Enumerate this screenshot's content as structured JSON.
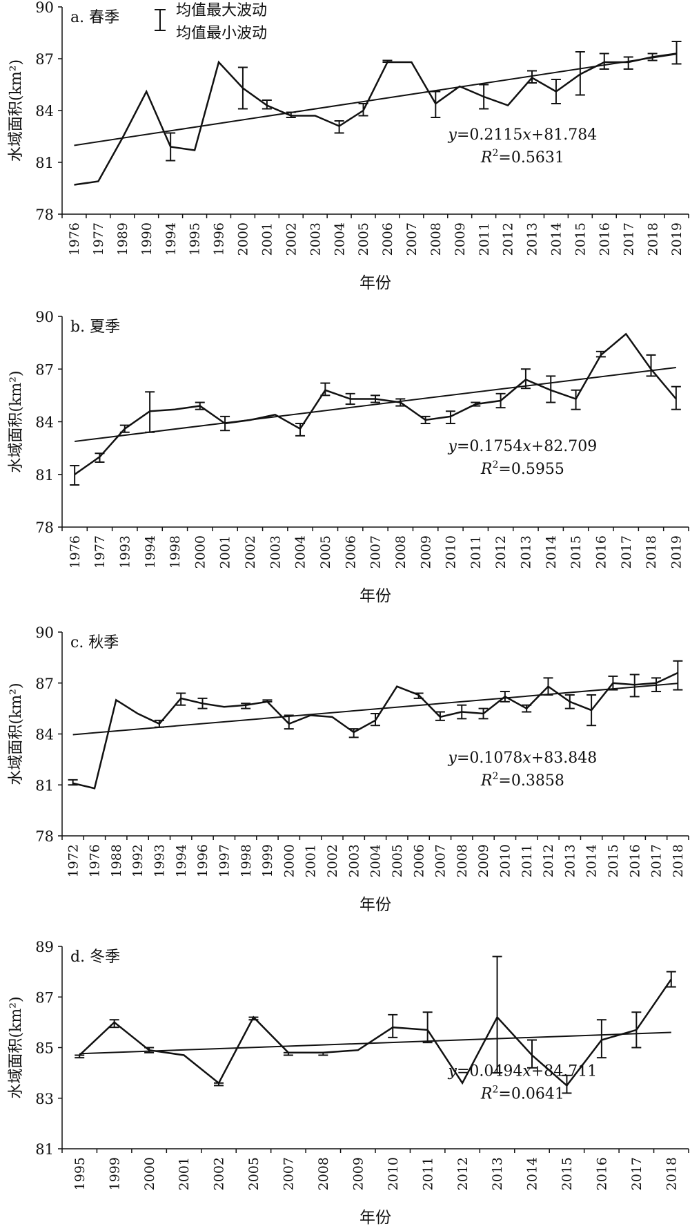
{
  "legend": {
    "max_label": "均值最大波动",
    "min_label": "均值最小波动"
  },
  "chart_data": [
    {
      "type": "line",
      "title": "a. 春季",
      "xlabel": "年份",
      "ylabel": "水域面积(km²)",
      "ylim": [
        78,
        90
      ],
      "yticks": [
        78,
        81,
        84,
        87,
        90
      ],
      "categories": [
        "1976",
        "1977",
        "1989",
        "1990",
        "1994",
        "1995",
        "1996",
        "2000",
        "2001",
        "2002",
        "2003",
        "2004",
        "2005",
        "2006",
        "2007",
        "2008",
        "2009",
        "2011",
        "2012",
        "2013",
        "2014",
        "2015",
        "2016",
        "2017",
        "2018",
        "2019"
      ],
      "series": [
        {
          "values": [
            79.7,
            79.9,
            82.4,
            85.1,
            81.9,
            81.7,
            86.8,
            85.3,
            84.3,
            83.7,
            83.7,
            83.1,
            84.0,
            86.8,
            86.8,
            84.4,
            85.4,
            84.8,
            84.3,
            85.9,
            85.1,
            86.1,
            86.8,
            86.8,
            87.1,
            87.3
          ]
        }
      ],
      "error_bars": [
        {
          "category": "1994",
          "high": 82.7,
          "low": 81.1
        },
        {
          "category": "2000",
          "high": 86.5,
          "low": 84.1
        },
        {
          "category": "2001",
          "high": 84.6,
          "low": 84.1
        },
        {
          "category": "2002",
          "high": 83.9,
          "low": 83.6
        },
        {
          "category": "2004",
          "high": 83.4,
          "low": 82.7
        },
        {
          "category": "2005",
          "high": 84.4,
          "low": 83.7
        },
        {
          "category": "2006",
          "high": 86.9,
          "low": 86.8
        },
        {
          "category": "2008",
          "high": 85.1,
          "low": 83.6
        },
        {
          "category": "2011",
          "high": 85.5,
          "low": 84.1
        },
        {
          "category": "2013",
          "high": 86.3,
          "low": 85.6
        },
        {
          "category": "2014",
          "high": 85.8,
          "low": 84.4
        },
        {
          "category": "2015",
          "high": 87.4,
          "low": 84.9
        },
        {
          "category": "2016",
          "high": 87.3,
          "low": 86.4
        },
        {
          "category": "2017",
          "high": 87.1,
          "low": 86.4
        },
        {
          "category": "2018",
          "high": 87.3,
          "low": 86.9
        },
        {
          "category": "2019",
          "high": 88.0,
          "low": 86.7
        }
      ],
      "trend": {
        "start": 81.98,
        "end": 87.27
      },
      "equation": {
        "prefix": "y",
        "mid": "=0.2115",
        "var": "x",
        "rest": "+81.784"
      },
      "r2": {
        "prefix": "R",
        "sup": "2",
        "rest": "=0.5631"
      }
    },
    {
      "type": "line",
      "title": "b. 夏季",
      "xlabel": "年份",
      "ylabel": "水域面积(km²)",
      "ylim": [
        78,
        90
      ],
      "yticks": [
        78,
        81,
        84,
        87,
        90
      ],
      "categories": [
        "1976",
        "1977",
        "1993",
        "1994",
        "1998",
        "2000",
        "2001",
        "2002",
        "2003",
        "2004",
        "2005",
        "2006",
        "2007",
        "2008",
        "2009",
        "2010",
        "2011",
        "2012",
        "2013",
        "2014",
        "2015",
        "2016",
        "2017",
        "2018",
        "2019"
      ],
      "series": [
        {
          "values": [
            81.0,
            82.0,
            83.6,
            84.6,
            84.7,
            84.9,
            83.9,
            84.1,
            84.4,
            83.6,
            85.8,
            85.3,
            85.3,
            85.1,
            84.1,
            84.3,
            85.0,
            85.2,
            86.4,
            85.8,
            85.3,
            87.8,
            89.0,
            87.0,
            85.3
          ]
        }
      ],
      "error_bars": [
        {
          "category": "1976",
          "high": 81.5,
          "low": 80.4
        },
        {
          "category": "1977",
          "high": 82.2,
          "low": 81.7
        },
        {
          "category": "1993",
          "high": 83.8,
          "low": 83.4
        },
        {
          "category": "1994",
          "high": 85.7,
          "low": 83.4
        },
        {
          "category": "2000",
          "high": 85.1,
          "low": 84.7
        },
        {
          "category": "2001",
          "high": 84.3,
          "low": 83.5
        },
        {
          "category": "2004",
          "high": 83.9,
          "low": 83.2
        },
        {
          "category": "2005",
          "high": 86.2,
          "low": 85.5
        },
        {
          "category": "2006",
          "high": 85.6,
          "low": 85.0
        },
        {
          "category": "2007",
          "high": 85.5,
          "low": 85.1
        },
        {
          "category": "2008",
          "high": 85.3,
          "low": 84.9
        },
        {
          "category": "2009",
          "high": 84.3,
          "low": 83.9
        },
        {
          "category": "2010",
          "high": 84.6,
          "low": 83.9
        },
        {
          "category": "2011",
          "high": 85.1,
          "low": 84.9
        },
        {
          "category": "2012",
          "high": 85.6,
          "low": 84.8
        },
        {
          "category": "2013",
          "high": 87.0,
          "low": 85.9
        },
        {
          "category": "2014",
          "high": 86.6,
          "low": 85.1
        },
        {
          "category": "2015",
          "high": 85.8,
          "low": 84.7
        },
        {
          "category": "2016",
          "high": 88.0,
          "low": 87.7
        },
        {
          "category": "2018",
          "high": 87.8,
          "low": 86.6
        },
        {
          "category": "2019",
          "high": 86.0,
          "low": 84.7
        }
      ],
      "trend": {
        "start": 82.88,
        "end": 87.09
      },
      "equation": {
        "prefix": "y",
        "mid": "=0.1754",
        "var": "x",
        "rest": "+82.709"
      },
      "r2": {
        "prefix": "R",
        "sup": "2",
        "rest": "=0.5955"
      }
    },
    {
      "type": "line",
      "title": "c. 秋季",
      "xlabel": "年份",
      "ylabel": "水域面积(km²)",
      "ylim": [
        78,
        90
      ],
      "yticks": [
        78,
        81,
        84,
        87,
        90
      ],
      "categories": [
        "1972",
        "1976",
        "1988",
        "1992",
        "1993",
        "1994",
        "1996",
        "1997",
        "1998",
        "1999",
        "2000",
        "2001",
        "2002",
        "2003",
        "2004",
        "2005",
        "2006",
        "2007",
        "2008",
        "2009",
        "2010",
        "2011",
        "2012",
        "2013",
        "2014",
        "2015",
        "2016",
        "2017",
        "2018"
      ],
      "series": [
        {
          "values": [
            81.1,
            80.8,
            86.0,
            85.2,
            84.6,
            86.1,
            85.8,
            85.6,
            85.7,
            85.9,
            84.6,
            85.1,
            85.0,
            84.1,
            84.8,
            86.8,
            86.3,
            85.0,
            85.3,
            85.2,
            86.2,
            85.5,
            86.8,
            85.9,
            85.4,
            87.0,
            86.9,
            87.0,
            87.6
          ]
        }
      ],
      "error_bars": [
        {
          "category": "1972",
          "high": 81.3,
          "low": 81.0
        },
        {
          "category": "1993",
          "high": 84.8,
          "low": 84.4
        },
        {
          "category": "1994",
          "high": 86.4,
          "low": 85.7
        },
        {
          "category": "1996",
          "high": 86.1,
          "low": 85.5
        },
        {
          "category": "1998",
          "high": 85.8,
          "low": 85.5
        },
        {
          "category": "1999",
          "high": 86.0,
          "low": 85.9
        },
        {
          "category": "2000",
          "high": 85.1,
          "low": 84.3
        },
        {
          "category": "2003",
          "high": 84.3,
          "low": 83.8
        },
        {
          "category": "2004",
          "high": 85.2,
          "low": 84.5
        },
        {
          "category": "2006",
          "high": 86.4,
          "low": 86.1
        },
        {
          "category": "2007",
          "high": 85.3,
          "low": 84.8
        },
        {
          "category": "2008",
          "high": 85.7,
          "low": 84.9
        },
        {
          "category": "2009",
          "high": 85.5,
          "low": 84.9
        },
        {
          "category": "2010",
          "high": 86.5,
          "low": 85.9
        },
        {
          "category": "2011",
          "high": 85.7,
          "low": 85.3
        },
        {
          "category": "2012",
          "high": 87.3,
          "low": 86.3
        },
        {
          "category": "2013",
          "high": 86.3,
          "low": 85.5
        },
        {
          "category": "2014",
          "high": 86.3,
          "low": 84.5
        },
        {
          "category": "2015",
          "high": 87.4,
          "low": 86.6
        },
        {
          "category": "2016",
          "high": 87.5,
          "low": 86.2
        },
        {
          "category": "2017",
          "high": 87.3,
          "low": 86.5
        },
        {
          "category": "2018",
          "high": 88.3,
          "low": 86.6
        }
      ],
      "trend": {
        "start": 83.96,
        "end": 86.98
      },
      "equation": {
        "prefix": "y",
        "mid": "=0.1078",
        "var": "x",
        "rest": "+83.848"
      },
      "r2": {
        "prefix": "R",
        "sup": "2",
        "rest": "=0.3858"
      }
    },
    {
      "type": "line",
      "title": "d. 冬季",
      "xlabel": "年份",
      "ylabel": "水域面积(km²)",
      "ylim": [
        81,
        89
      ],
      "yticks": [
        81,
        83,
        85,
        87,
        89
      ],
      "categories": [
        "1995",
        "1999",
        "2000",
        "2001",
        "2002",
        "2005",
        "2007",
        "2008",
        "2009",
        "2010",
        "2011",
        "2012",
        "2013",
        "2014",
        "2015",
        "2016",
        "2017",
        "2018"
      ],
      "series": [
        {
          "values": [
            84.7,
            86.0,
            84.9,
            84.7,
            83.6,
            86.2,
            84.8,
            84.8,
            84.9,
            85.8,
            85.7,
            83.6,
            86.2,
            84.7,
            83.5,
            85.3,
            85.7,
            87.7
          ]
        }
      ],
      "error_bars": [
        {
          "category": "1995",
          "high": 84.7,
          "low": 84.6
        },
        {
          "category": "1999",
          "high": 86.1,
          "low": 85.8
        },
        {
          "category": "2000",
          "high": 85.0,
          "low": 84.8
        },
        {
          "category": "2002",
          "high": 83.6,
          "low": 83.5
        },
        {
          "category": "2005",
          "high": 86.2,
          "low": 86.1
        },
        {
          "category": "2007",
          "high": 84.8,
          "low": 84.7
        },
        {
          "category": "2008",
          "high": 84.8,
          "low": 84.7
        },
        {
          "category": "2010",
          "high": 86.3,
          "low": 85.4
        },
        {
          "category": "2011",
          "high": 86.4,
          "low": 85.2
        },
        {
          "category": "2013",
          "high": 88.6,
          "low": 84.0
        },
        {
          "category": "2014",
          "high": 85.3,
          "low": 84.2
        },
        {
          "category": "2015",
          "high": 83.9,
          "low": 83.2
        },
        {
          "category": "2016",
          "high": 86.1,
          "low": 84.6
        },
        {
          "category": "2017",
          "high": 86.4,
          "low": 85.0
        },
        {
          "category": "2018",
          "high": 88.0,
          "low": 87.4
        }
      ],
      "trend": {
        "start": 84.76,
        "end": 85.6
      },
      "equation": {
        "prefix": "y",
        "mid": "=0.0494",
        "var": "x",
        "rest": "+84.711"
      },
      "r2": {
        "prefix": "R",
        "sup": "2",
        "rest": "=0.0641"
      }
    }
  ]
}
